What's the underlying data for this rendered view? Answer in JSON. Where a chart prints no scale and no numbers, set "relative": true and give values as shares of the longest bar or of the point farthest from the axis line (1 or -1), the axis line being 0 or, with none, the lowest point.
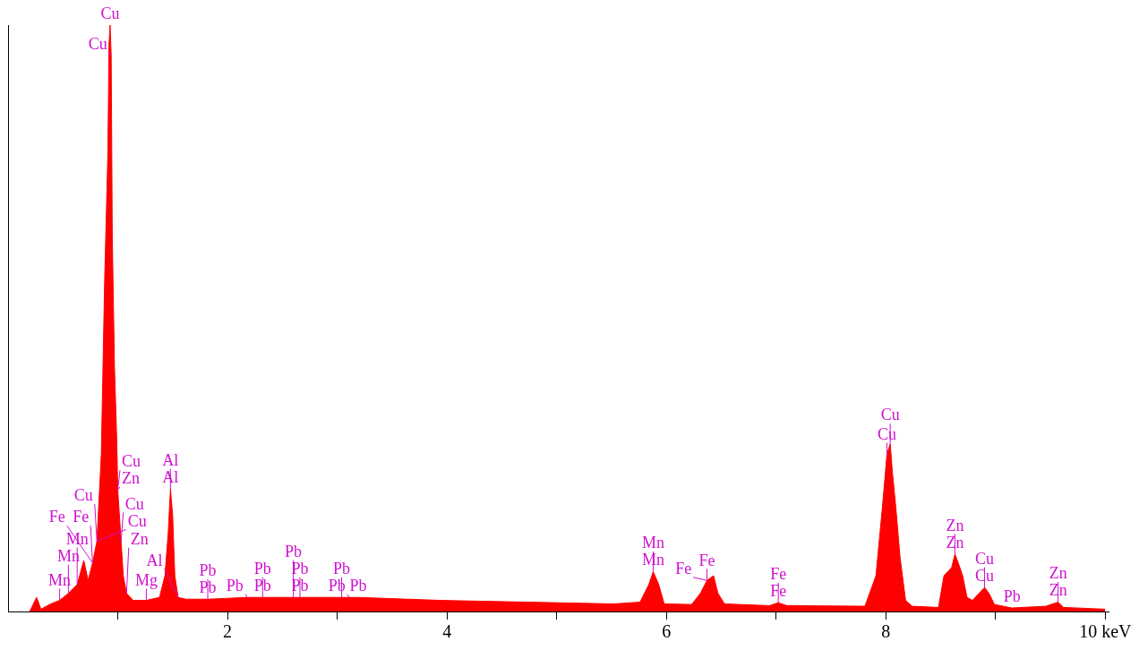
{
  "chart_data": {
    "type": "area",
    "relative": true,
    "grid": false,
    "legend": false,
    "marker": "none",
    "xlim": [
      0,
      10.03
    ],
    "xticks": [
      {
        "value": 1,
        "label": null
      },
      2,
      {
        "value": 3,
        "label": null
      },
      4,
      {
        "value": 5,
        "label": null
      },
      6,
      {
        "value": 7,
        "label": null
      },
      8,
      {
        "value": 9,
        "label": null
      },
      {
        "value": 10,
        "label": "10 keV"
      }
    ],
    "series": [
      {
        "color": "#ff0000",
        "x": [
          0.197,
          0.26,
          0.3,
          0.39,
          0.47,
          0.55,
          0.63,
          0.69,
          0.73,
          0.77,
          0.81,
          0.85,
          0.88,
          0.91,
          0.92,
          0.93,
          0.94,
          0.95,
          0.97,
          0.99,
          1.0,
          1.03,
          1.05,
          1.08,
          1.14,
          1.26,
          1.38,
          1.43,
          1.46,
          1.48,
          1.5,
          1.52,
          1.55,
          1.62,
          1.82,
          2.18,
          2.32,
          2.37,
          2.6,
          2.66,
          3.04,
          3.11,
          3.15,
          3.19,
          3.94,
          4.73,
          5.52,
          5.76,
          5.84,
          5.88,
          5.93,
          5.98,
          6.23,
          6.31,
          6.37,
          6.43,
          6.47,
          6.53,
          6.94,
          7.02,
          7.1,
          7.81,
          7.91,
          7.97,
          8.01,
          8.04,
          8.06,
          8.09,
          8.13,
          8.18,
          8.24,
          8.48,
          8.53,
          8.6,
          8.63,
          8.66,
          8.7,
          8.74,
          8.79,
          8.85,
          8.9,
          8.94,
          8.99,
          9.15,
          9.46,
          9.57,
          9.62,
          10.0
        ],
        "values": [
          0,
          0.024,
          0.004,
          0.013,
          0.019,
          0.031,
          0.046,
          0.087,
          0.053,
          0.083,
          0.12,
          0.268,
          0.562,
          0.784,
          0.967,
          1,
          0.948,
          0.638,
          0.416,
          0.297,
          0.207,
          0.12,
          0.061,
          0.031,
          0.019,
          0.019,
          0.024,
          0.061,
          0.135,
          0.209,
          0.164,
          0.061,
          0.024,
          0.021,
          0.021,
          0.024,
          0.024,
          0.024,
          0.024,
          0.024,
          0.024,
          0.024,
          0.024,
          0.024,
          0.019,
          0.016,
          0.013,
          0.016,
          0.046,
          0.068,
          0.046,
          0.013,
          0.012,
          0.031,
          0.053,
          0.061,
          0.031,
          0.013,
          0.01,
          0.015,
          0.01,
          0.009,
          0.061,
          0.18,
          0.268,
          0.286,
          0.237,
          0.18,
          0.092,
          0.019,
          0.009,
          0.007,
          0.061,
          0.075,
          0.098,
          0.083,
          0.061,
          0.024,
          0.019,
          0.031,
          0.041,
          0.031,
          0.012,
          0.006,
          0.009,
          0.016,
          0.007,
          0.004
        ]
      }
    ],
    "annotations": [
      {
        "text": "Cu",
        "x": 0.93,
        "y": 1
      },
      {
        "text": "Zn",
        "x": 1.0,
        "y": 0.207
      },
      {
        "text": "Cu",
        "x": 0.81,
        "y": 0.12
      },
      {
        "text": "Al",
        "x": 1.48,
        "y": 0.209
      },
      {
        "text": "Mn",
        "x": 0.63,
        "y": 0.046
      },
      {
        "text": "Cu",
        "x": 0.94,
        "y": 0.948
      },
      {
        "text": "Mn",
        "x": 0.55,
        "y": 0.031
      },
      {
        "text": "Cu",
        "x": 0.81,
        "y": 0.12
      },
      {
        "text": "Zn",
        "x": 1.08,
        "y": 0.031
      },
      {
        "text": "Al",
        "x": 1.48,
        "y": 0.209
      },
      {
        "text": "Fe",
        "x": 0.77,
        "y": 0.083
      },
      {
        "text": "Cu",
        "x": 1.0,
        "y": 0.207
      },
      {
        "text": "Mn",
        "x": 0.47,
        "y": 0.019
      },
      {
        "text": "Fe",
        "x": 0.77,
        "y": 0.083
      },
      {
        "text": "Cu",
        "x": 1.03,
        "y": 0.12
      },
      {
        "text": "Mg",
        "x": 1.26,
        "y": 0.019
      },
      {
        "text": "Al",
        "x": 1.55,
        "y": 0.024
      },
      {
        "text": "Pb",
        "x": 1.82,
        "y": 0.021
      },
      {
        "text": "Pb",
        "x": 1.82,
        "y": 0.021
      },
      {
        "text": "Pb",
        "x": 2.32,
        "y": 0.024
      },
      {
        "text": "Pb",
        "x": 2.32,
        "y": 0.024
      },
      {
        "text": "Pb",
        "x": 2.18,
        "y": 0.024
      },
      {
        "text": "Pb",
        "x": 2.66,
        "y": 0.024
      },
      {
        "text": "Pb",
        "x": 2.66,
        "y": 0.024
      },
      {
        "text": "Pb",
        "x": 2.6,
        "y": 0.024
      },
      {
        "text": "Pb",
        "x": 3.19,
        "y": 0.024
      },
      {
        "text": "Pb",
        "x": 3.11,
        "y": 0.024
      },
      {
        "text": "Pb",
        "x": 3.04,
        "y": 0.024
      },
      {
        "text": "Mn",
        "x": 5.88,
        "y": 0.068
      },
      {
        "text": "Mn",
        "x": 5.88,
        "y": 0.068
      },
      {
        "text": "Fe",
        "x": 6.37,
        "y": 0.053
      },
      {
        "text": "Fe",
        "x": 6.37,
        "y": 0.053
      },
      {
        "text": "Fe",
        "x": 7.02,
        "y": 0.015
      },
      {
        "text": "Fe",
        "x": 7.02,
        "y": 0.015
      },
      {
        "text": "Cu",
        "x": 8.04,
        "y": 0.286
      },
      {
        "text": "Cu",
        "x": 8.01,
        "y": 0.268
      },
      {
        "text": "Zn",
        "x": 8.63,
        "y": 0.098
      },
      {
        "text": "Zn",
        "x": 8.63,
        "y": 0.098
      },
      {
        "text": "Cu",
        "x": 8.9,
        "y": 0.041
      },
      {
        "text": "Cu",
        "x": 8.9,
        "y": 0.041
      },
      {
        "text": "Pb",
        "x": 9.15,
        "y": 0.006
      },
      {
        "text": "Zn",
        "x": 9.57,
        "y": 0.016
      },
      {
        "text": "Zn",
        "x": 9.57,
        "y": 0.016
      }
    ]
  }
}
